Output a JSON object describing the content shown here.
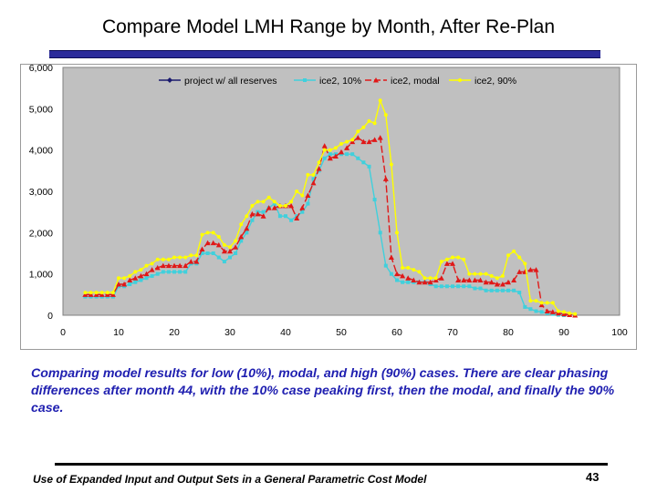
{
  "slide": {
    "title": "Compare Model LMH Range by Month, After Re-Plan",
    "caption": "Comparing model results for low (10%), modal, and high (90%) cases. There are clear phasing differences after month 44, with the 10% case peaking first, then the modal, and finally the 90% case.",
    "footer": "Use of Expanded Input and Output Sets in a General Parametric Cost Model",
    "page_number": "43"
  },
  "chart_data": {
    "type": "line",
    "title": "",
    "xlabel": "",
    "ylabel": "",
    "xlim": [
      0,
      100
    ],
    "ylim": [
      0,
      6000
    ],
    "x_ticks": [
      0,
      10,
      20,
      30,
      40,
      50,
      60,
      70,
      80,
      90,
      100
    ],
    "x_tick_labels": [
      "0",
      "10",
      "20",
      "30",
      "40",
      "50",
      "60",
      "70",
      "80",
      "90",
      "100"
    ],
    "y_ticks": [
      0,
      1000,
      2000,
      3000,
      4000,
      5000,
      6000
    ],
    "y_tick_labels": [
      "0",
      "1,000",
      "2,000",
      "3,000",
      "4,000",
      "5,000",
      "6,000"
    ],
    "grid": "none",
    "plot_background": "#c0c0c0",
    "legend_position": "top",
    "series": [
      {
        "name": "project w/ all reserves",
        "color": "#1a1a6e",
        "marker": "diamond",
        "dash": "solid",
        "points": []
      },
      {
        "name": "ice2, 10%",
        "color": "#40d0dc",
        "marker": "square",
        "dash": "solid",
        "points": [
          [
            4,
            450
          ],
          [
            5,
            450
          ],
          [
            6,
            450
          ],
          [
            7,
            450
          ],
          [
            8,
            450
          ],
          [
            9,
            450
          ],
          [
            10,
            700
          ],
          [
            11,
            700
          ],
          [
            12,
            750
          ],
          [
            13,
            800
          ],
          [
            14,
            850
          ],
          [
            15,
            900
          ],
          [
            16,
            950
          ],
          [
            17,
            1000
          ],
          [
            18,
            1050
          ],
          [
            19,
            1050
          ],
          [
            20,
            1050
          ],
          [
            21,
            1050
          ],
          [
            22,
            1050
          ],
          [
            23,
            1250
          ],
          [
            24,
            1250
          ],
          [
            25,
            1500
          ],
          [
            26,
            1500
          ],
          [
            27,
            1500
          ],
          [
            28,
            1400
          ],
          [
            29,
            1300
          ],
          [
            30,
            1400
          ],
          [
            31,
            1500
          ],
          [
            32,
            1800
          ],
          [
            33,
            2000
          ],
          [
            34,
            2300
          ],
          [
            35,
            2500
          ],
          [
            36,
            2500
          ],
          [
            37,
            2600
          ],
          [
            38,
            2700
          ],
          [
            39,
            2400
          ],
          [
            40,
            2400
          ],
          [
            41,
            2300
          ],
          [
            42,
            2400
          ],
          [
            43,
            2500
          ],
          [
            44,
            2700
          ],
          [
            45,
            3300
          ],
          [
            46,
            3500
          ],
          [
            47,
            3800
          ],
          [
            48,
            3900
          ],
          [
            49,
            3900
          ],
          [
            50,
            3900
          ],
          [
            51,
            3900
          ],
          [
            52,
            3900
          ],
          [
            53,
            3800
          ],
          [
            54,
            3700
          ],
          [
            55,
            3600
          ],
          [
            56,
            2800
          ],
          [
            57,
            2000
          ],
          [
            58,
            1200
          ],
          [
            59,
            1000
          ],
          [
            60,
            850
          ],
          [
            61,
            800
          ],
          [
            62,
            800
          ],
          [
            63,
            800
          ],
          [
            64,
            800
          ],
          [
            65,
            800
          ],
          [
            66,
            750
          ],
          [
            67,
            700
          ],
          [
            68,
            700
          ],
          [
            69,
            700
          ],
          [
            70,
            700
          ],
          [
            71,
            700
          ],
          [
            72,
            700
          ],
          [
            73,
            700
          ],
          [
            74,
            650
          ],
          [
            75,
            650
          ],
          [
            76,
            600
          ],
          [
            77,
            600
          ],
          [
            78,
            600
          ],
          [
            79,
            600
          ],
          [
            80,
            600
          ],
          [
            81,
            600
          ],
          [
            82,
            550
          ],
          [
            83,
            200
          ],
          [
            84,
            150
          ],
          [
            85,
            100
          ],
          [
            86,
            80
          ],
          [
            87,
            50
          ],
          [
            88,
            30
          ],
          [
            89,
            10
          ],
          [
            90,
            0
          ]
        ]
      },
      {
        "name": "ice2, modal",
        "color": "#e01818",
        "marker": "triangle",
        "dash": "long-dash",
        "points": [
          [
            4,
            500
          ],
          [
            5,
            500
          ],
          [
            6,
            500
          ],
          [
            7,
            500
          ],
          [
            8,
            500
          ],
          [
            9,
            500
          ],
          [
            10,
            750
          ],
          [
            11,
            750
          ],
          [
            12,
            850
          ],
          [
            13,
            900
          ],
          [
            14,
            950
          ],
          [
            15,
            1000
          ],
          [
            16,
            1100
          ],
          [
            17,
            1150
          ],
          [
            18,
            1200
          ],
          [
            19,
            1200
          ],
          [
            20,
            1200
          ],
          [
            21,
            1200
          ],
          [
            22,
            1200
          ],
          [
            23,
            1300
          ],
          [
            24,
            1300
          ],
          [
            25,
            1600
          ],
          [
            26,
            1750
          ],
          [
            27,
            1750
          ],
          [
            28,
            1700
          ],
          [
            29,
            1550
          ],
          [
            30,
            1550
          ],
          [
            31,
            1650
          ],
          [
            32,
            1900
          ],
          [
            33,
            2100
          ],
          [
            34,
            2450
          ],
          [
            35,
            2450
          ],
          [
            36,
            2400
          ],
          [
            37,
            2600
          ],
          [
            38,
            2600
          ],
          [
            39,
            2650
          ],
          [
            40,
            2650
          ],
          [
            41,
            2650
          ],
          [
            42,
            2350
          ],
          [
            43,
            2600
          ],
          [
            44,
            2900
          ],
          [
            45,
            3200
          ],
          [
            46,
            3550
          ],
          [
            47,
            4100
          ],
          [
            48,
            3800
          ],
          [
            49,
            3850
          ],
          [
            50,
            3950
          ],
          [
            51,
            4050
          ],
          [
            52,
            4200
          ],
          [
            53,
            4300
          ],
          [
            54,
            4200
          ],
          [
            55,
            4200
          ],
          [
            56,
            4250
          ],
          [
            57,
            4300
          ],
          [
            58,
            3300
          ],
          [
            59,
            1400
          ],
          [
            60,
            1000
          ],
          [
            61,
            950
          ],
          [
            62,
            900
          ],
          [
            63,
            850
          ],
          [
            64,
            800
          ],
          [
            65,
            800
          ],
          [
            66,
            800
          ],
          [
            67,
            850
          ],
          [
            68,
            900
          ],
          [
            69,
            1250
          ],
          [
            70,
            1250
          ],
          [
            71,
            850
          ],
          [
            72,
            850
          ],
          [
            73,
            850
          ],
          [
            74,
            850
          ],
          [
            75,
            850
          ],
          [
            76,
            800
          ],
          [
            77,
            800
          ],
          [
            78,
            750
          ],
          [
            79,
            750
          ],
          [
            80,
            800
          ],
          [
            81,
            850
          ],
          [
            82,
            1050
          ],
          [
            83,
            1050
          ],
          [
            84,
            1100
          ],
          [
            85,
            1100
          ],
          [
            86,
            250
          ],
          [
            87,
            100
          ],
          [
            88,
            80
          ],
          [
            89,
            50
          ],
          [
            90,
            30
          ],
          [
            91,
            10
          ],
          [
            92,
            0
          ]
        ]
      },
      {
        "name": "ice2, 90%",
        "color": "#ffff00",
        "marker": "circle",
        "dash": "solid",
        "points": [
          [
            4,
            550
          ],
          [
            5,
            550
          ],
          [
            6,
            550
          ],
          [
            7,
            550
          ],
          [
            8,
            550
          ],
          [
            9,
            550
          ],
          [
            10,
            900
          ],
          [
            11,
            900
          ],
          [
            12,
            950
          ],
          [
            13,
            1050
          ],
          [
            14,
            1100
          ],
          [
            15,
            1200
          ],
          [
            16,
            1250
          ],
          [
            17,
            1350
          ],
          [
            18,
            1350
          ],
          [
            19,
            1350
          ],
          [
            20,
            1400
          ],
          [
            21,
            1400
          ],
          [
            22,
            1400
          ],
          [
            23,
            1450
          ],
          [
            24,
            1450
          ],
          [
            25,
            1950
          ],
          [
            26,
            2000
          ],
          [
            27,
            2000
          ],
          [
            28,
            1900
          ],
          [
            29,
            1700
          ],
          [
            30,
            1650
          ],
          [
            31,
            1800
          ],
          [
            32,
            2200
          ],
          [
            33,
            2400
          ],
          [
            34,
            2650
          ],
          [
            35,
            2750
          ],
          [
            36,
            2750
          ],
          [
            37,
            2850
          ],
          [
            38,
            2750
          ],
          [
            39,
            2650
          ],
          [
            40,
            2650
          ],
          [
            41,
            2750
          ],
          [
            42,
            3000
          ],
          [
            43,
            2900
          ],
          [
            44,
            3400
          ],
          [
            45,
            3400
          ],
          [
            46,
            3700
          ],
          [
            47,
            4000
          ],
          [
            48,
            4000
          ],
          [
            49,
            4050
          ],
          [
            50,
            4150
          ],
          [
            51,
            4200
          ],
          [
            52,
            4250
          ],
          [
            53,
            4450
          ],
          [
            54,
            4550
          ],
          [
            55,
            4700
          ],
          [
            56,
            4650
          ],
          [
            57,
            5200
          ],
          [
            58,
            4850
          ],
          [
            59,
            3650
          ],
          [
            60,
            2000
          ],
          [
            61,
            1150
          ],
          [
            62,
            1150
          ],
          [
            63,
            1100
          ],
          [
            64,
            1050
          ],
          [
            65,
            900
          ],
          [
            66,
            900
          ],
          [
            67,
            900
          ],
          [
            68,
            1300
          ],
          [
            69,
            1350
          ],
          [
            70,
            1400
          ],
          [
            71,
            1400
          ],
          [
            72,
            1350
          ],
          [
            73,
            1000
          ],
          [
            74,
            1000
          ],
          [
            75,
            1000
          ],
          [
            76,
            1000
          ],
          [
            77,
            950
          ],
          [
            78,
            900
          ],
          [
            79,
            950
          ],
          [
            80,
            1450
          ],
          [
            81,
            1550
          ],
          [
            82,
            1400
          ],
          [
            83,
            1250
          ],
          [
            84,
            350
          ],
          [
            85,
            350
          ],
          [
            86,
            300
          ],
          [
            87,
            300
          ],
          [
            88,
            300
          ],
          [
            89,
            100
          ],
          [
            90,
            80
          ],
          [
            91,
            50
          ],
          [
            92,
            30
          ]
        ]
      }
    ]
  }
}
